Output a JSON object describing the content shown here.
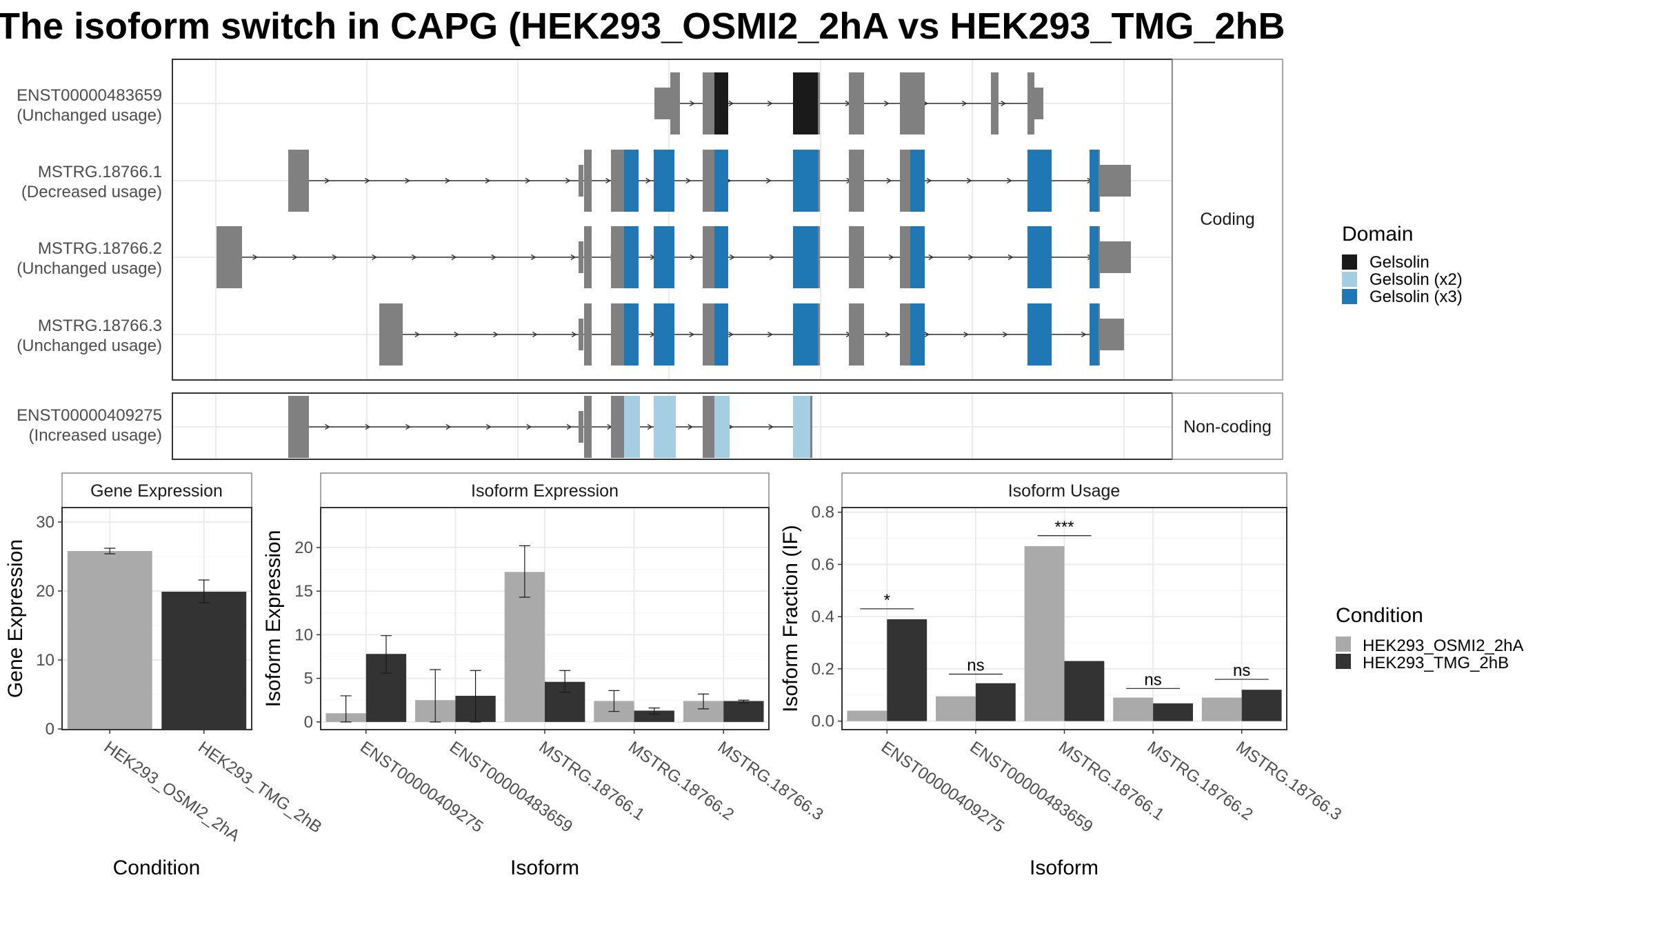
{
  "title": "The isoform switch in CAPG (HEK293_OSMI2_2hA vs HEK293_TMG_2hB",
  "colors": {
    "exon": "#808080",
    "gelsolin": "#1a1a1a",
    "gelsolin_x2": "#a6cee3",
    "gelsolin_x3": "#1f78b4",
    "cond1": "#aaaaaa",
    "cond2": "#333333"
  },
  "panels": {
    "coding_label": "Coding",
    "noncoding_label": "Non-coding"
  },
  "isoform_rows": [
    {
      "name": "ENST00000483659",
      "usage": "(Unchanged usage)"
    },
    {
      "name": "MSTRG.18766.1",
      "usage": "(Decreased usage)"
    },
    {
      "name": "MSTRG.18766.2",
      "usage": "(Unchanged usage)"
    },
    {
      "name": "MSTRG.18766.3",
      "usage": "(Unchanged usage)"
    },
    {
      "name": "ENST00000409275",
      "usage": "(Increased usage)"
    }
  ],
  "domain_legend": {
    "title": "Domain",
    "items": [
      "Gelsolin",
      "Gelsolin (x2)",
      "Gelsolin (x3)"
    ]
  },
  "condition_legend": {
    "title": "Condition",
    "items": [
      "HEK293_OSMI2_2hA",
      "HEK293_TMG_2hB"
    ]
  },
  "chart_data": [
    {
      "type": "bar",
      "title": "Gene Expression",
      "xlabel": "Condition",
      "ylabel": "Gene Expression",
      "categories": [
        "HEK293_OSMI2_2hA",
        "HEK293_TMG_2hB"
      ],
      "values": [
        25.8,
        19.9
      ],
      "errors": [
        [
          25.4,
          26.2
        ],
        [
          18.3,
          21.6
        ]
      ],
      "ylim": [
        0,
        32
      ],
      "yticks": [
        0,
        10,
        20,
        30
      ]
    },
    {
      "type": "bar",
      "title": "Isoform Expression",
      "xlabel": "Isoform",
      "ylabel": "Isoform Expression",
      "categories": [
        "ENST00000409275",
        "ENST00000483659",
        "MSTRG.18766.1",
        "MSTRG.18766.2",
        "MSTRG.18766.3"
      ],
      "series": [
        {
          "name": "HEK293_OSMI2_2hA",
          "values": [
            1.0,
            2.5,
            17.2,
            2.4,
            2.4
          ],
          "errors": [
            [
              0,
              3.0
            ],
            [
              0,
              6.0
            ],
            [
              14.3,
              20.2
            ],
            [
              1.2,
              3.6
            ],
            [
              1.5,
              3.2
            ]
          ]
        },
        {
          "name": "HEK293_TMG_2hB",
          "values": [
            7.8,
            3.0,
            4.6,
            1.3,
            2.4
          ],
          "errors": [
            [
              5.6,
              9.9
            ],
            [
              0,
              5.9
            ],
            [
              3.4,
              5.9
            ],
            [
              0.9,
              1.6
            ],
            [
              2.2,
              2.5
            ]
          ]
        }
      ],
      "ylim": [
        -0.8,
        24.5
      ],
      "yticks": [
        0,
        5,
        10,
        15,
        20
      ]
    },
    {
      "type": "bar",
      "title": "Isoform Usage",
      "xlabel": "Isoform",
      "ylabel": "Isoform Fraction (IF)",
      "categories": [
        "ENST00000409275",
        "ENST00000483659",
        "MSTRG.18766.1",
        "MSTRG.18766.2",
        "MSTRG.18766.3"
      ],
      "series": [
        {
          "name": "HEK293_OSMI2_2hA",
          "values": [
            0.04,
            0.095,
            0.67,
            0.09,
            0.09
          ]
        },
        {
          "name": "HEK293_TMG_2hB",
          "values": [
            0.39,
            0.145,
            0.23,
            0.068,
            0.12
          ]
        }
      ],
      "significance": [
        "*",
        "ns",
        "***",
        "ns",
        "ns"
      ],
      "sig_y": [
        0.43,
        0.18,
        0.71,
        0.125,
        0.16
      ],
      "ylim": [
        -0.03,
        0.815
      ],
      "yticks": [
        0.0,
        0.2,
        0.4,
        0.6,
        0.8
      ],
      "ytick_labels": [
        "0.0",
        "0.2",
        "0.4",
        "0.6",
        "0.8"
      ]
    }
  ]
}
